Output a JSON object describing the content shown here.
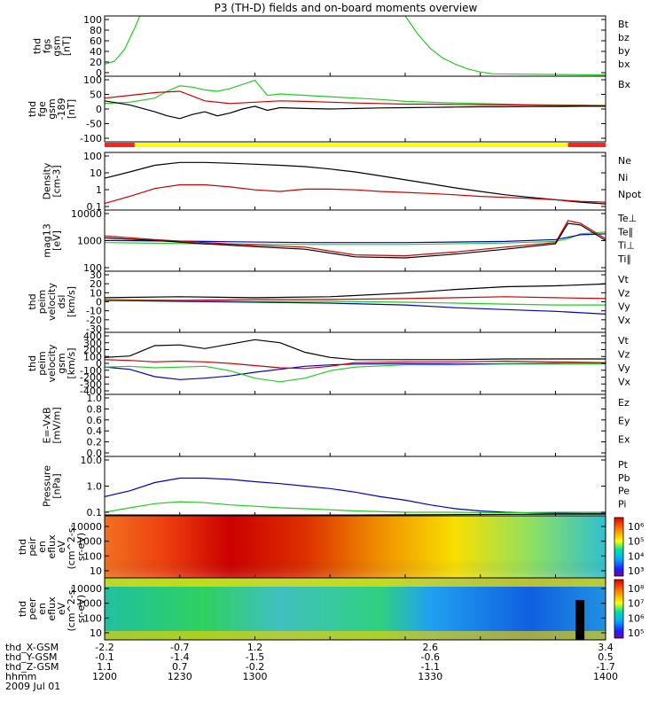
{
  "title": "P3 (TH-D) fields and on-board moments overview",
  "footer": {
    "rows": [
      {
        "label": "thd_X-GSM",
        "values": [
          "-2.2",
          "-0.7",
          "1.2",
          "2.6",
          "3.4"
        ]
      },
      {
        "label": "thd_Y-GSM",
        "values": [
          "-0.1",
          "-1.4",
          "-1.5",
          "-0.6",
          "0.5"
        ]
      },
      {
        "label": "thd_Z-GSM",
        "values": [
          "1.1",
          "0.7",
          "-0.2",
          "-1.1",
          "-1.7"
        ]
      },
      {
        "label": "hhmm",
        "values": [
          "1200",
          "1230",
          "1300",
          "1330",
          "1400"
        ]
      }
    ],
    "date": "2009 Jul 01"
  },
  "chart_data": [
    {
      "type": "line",
      "ylabel": [
        "thd",
        "fgs",
        "gsm",
        "[nT]"
      ],
      "yticks": [
        "100",
        "80",
        "60",
        "40",
        "20",
        "0"
      ],
      "ylim": [
        0,
        100
      ],
      "legend": [
        {
          "label": "Bt",
          "color": "#000000"
        },
        {
          "label": "bz",
          "color": "#cc0000"
        },
        {
          "label": "by",
          "color": "#00b400"
        },
        {
          "label": "bx",
          "color": "#0000cc"
        }
      ],
      "series": [
        {
          "color": "#22cc22",
          "x": [
            1200,
            1204,
            1208,
            1212,
            1214,
            1320,
            1325,
            1330,
            1335,
            1340,
            1345,
            1350,
            1355,
            1400
          ],
          "y": [
            20,
            25,
            45,
            80,
            100,
            100,
            70,
            46,
            30,
            20,
            12,
            7,
            4,
            2
          ]
        }
      ]
    },
    {
      "type": "line",
      "ylabel": [
        "thd",
        "fge",
        "gsm",
        "-189",
        "[nT]"
      ],
      "yticks": [
        "100",
        "50",
        "0",
        "-50",
        "-100"
      ],
      "ylim": [
        -130,
        110
      ],
      "legend": [
        {
          "label": "Bx",
          "color": "#000000"
        }
      ],
      "series": [
        {
          "color": "#22cc22",
          "x": [
            1200,
            1210,
            1220,
            1225,
            1230,
            1235,
            1240,
            1245,
            1250,
            1255,
            1260,
            1265,
            1270,
            1280,
            1290,
            1300,
            1310,
            1320,
            1330,
            1340,
            1350,
            1360,
            1370,
            1380,
            1390,
            1400
          ],
          "y": [
            10,
            15,
            30,
            55,
            75,
            70,
            60,
            55,
            65,
            80,
            95,
            40,
            45,
            40,
            35,
            30,
            25,
            18,
            15,
            12,
            10,
            8,
            6,
            5,
            4,
            3
          ]
        },
        {
          "color": "#cc0000",
          "x": [
            1200,
            1210,
            1220,
            1230,
            1240,
            1250,
            1260,
            1270,
            1280,
            1290,
            1300,
            1310,
            1320,
            1330,
            1340,
            1350,
            1360,
            1370,
            1380,
            1390,
            1400
          ],
          "y": [
            30,
            40,
            50,
            55,
            20,
            10,
            15,
            20,
            18,
            15,
            12,
            10,
            8,
            8,
            7,
            6,
            5,
            4,
            3,
            3,
            2
          ]
        },
        {
          "color": "#000000",
          "x": [
            1200,
            1210,
            1220,
            1225,
            1230,
            1235,
            1240,
            1245,
            1250,
            1255,
            1260,
            1265,
            1270,
            1280,
            1290,
            1300,
            1310,
            1320,
            1330,
            1340,
            1350,
            1360,
            1370,
            1380,
            1390,
            1400
          ],
          "y": [
            20,
            5,
            -20,
            -35,
            -45,
            -30,
            -20,
            -35,
            -25,
            -10,
            0,
            -15,
            -5,
            -8,
            -10,
            -8,
            -6,
            -5,
            -4,
            -3,
            -2,
            -2,
            -1,
            -1,
            0,
            0
          ]
        }
      ],
      "status_bar": [
        {
          "from": 1200,
          "to": 1212,
          "color": "#ff2020"
        },
        {
          "from": 1212,
          "to": 1385,
          "color": "#ffff00"
        },
        {
          "from": 1385,
          "to": 1400,
          "color": "#ff2020"
        }
      ]
    },
    {
      "type": "line",
      "scale": "log",
      "ylabel": [
        "Density",
        "[cm-3]"
      ],
      "yticks": [
        "100",
        "10",
        "1",
        "0.1"
      ],
      "ylim": [
        0.06,
        180
      ],
      "legend": [
        {
          "label": "Ne",
          "color": "#cc0000"
        },
        {
          "label": "Ni",
          "color": "#000000"
        },
        {
          "label": "Npot",
          "color": "#0000cc"
        }
      ],
      "series": [
        {
          "color": "#000000",
          "x": [
            1200,
            1210,
            1220,
            1230,
            1240,
            1250,
            1260,
            1270,
            1280,
            1290,
            1300,
            1310,
            1320,
            1330,
            1340,
            1350,
            1360,
            1370,
            1380,
            1390,
            1400
          ],
          "y": [
            5,
            12,
            30,
            45,
            45,
            40,
            35,
            30,
            25,
            18,
            12,
            7,
            4,
            2.3,
            1.3,
            0.8,
            0.5,
            0.35,
            0.25,
            0.18,
            0.14
          ]
        },
        {
          "color": "#cc0000",
          "x": [
            1200,
            1210,
            1220,
            1230,
            1240,
            1250,
            1260,
            1270,
            1280,
            1290,
            1300,
            1310,
            1320,
            1330,
            1340,
            1350,
            1360,
            1370,
            1380,
            1390,
            1400
          ],
          "y": [
            0.15,
            0.4,
            1.2,
            2,
            2,
            1.5,
            1.0,
            0.8,
            1.1,
            1.1,
            1.0,
            0.8,
            0.7,
            0.6,
            0.5,
            0.4,
            0.35,
            0.3,
            0.25,
            0.2,
            0.18
          ]
        }
      ]
    },
    {
      "type": "line",
      "scale": "log",
      "ylabel": [
        "mag13",
        "[eV]"
      ],
      "yticks": [
        "10000",
        "1000",
        "100"
      ],
      "ylim": [
        20,
        12000
      ],
      "legend": [
        {
          "label": "Te⊥",
          "color": "#cc0000"
        },
        {
          "label": "Te∥",
          "color": "#000000"
        },
        {
          "label": "Ti⊥",
          "color": "#00b400"
        },
        {
          "label": "Ti∥",
          "color": "#00b400"
        }
      ],
      "series": [
        {
          "color": "#22cc22",
          "x": [
            1200,
            1240,
            1280,
            1320,
            1360,
            1380,
            1385,
            1390,
            1400
          ],
          "y": [
            400,
            350,
            330,
            330,
            380,
            450,
            600,
            1000,
            1200
          ]
        },
        {
          "color": "#0000cc",
          "x": [
            1200,
            1240,
            1280,
            1320,
            1360,
            1380,
            1385,
            1390,
            1400
          ],
          "y": [
            500,
            450,
            400,
            400,
            450,
            550,
            700,
            900,
            1000
          ]
        },
        {
          "color": "#cc0000",
          "x": [
            1200,
            1220,
            1240,
            1260,
            1280,
            1300,
            1320,
            1340,
            1360,
            1380,
            1385,
            1390,
            1400
          ],
          "y": [
            800,
            550,
            400,
            300,
            250,
            110,
            100,
            150,
            250,
            400,
            4000,
            3000,
            600
          ]
        },
        {
          "color": "#000000",
          "x": [
            1200,
            1220,
            1240,
            1260,
            1280,
            1300,
            1320,
            1340,
            1360,
            1380,
            1385,
            1390,
            1400
          ],
          "y": [
            650,
            500,
            350,
            260,
            200,
            90,
            80,
            120,
            200,
            350,
            3000,
            2500,
            500
          ]
        }
      ]
    },
    {
      "type": "line",
      "ylabel": [
        "thd",
        "peim",
        "velocity",
        "dsl",
        "[km/s]"
      ],
      "yticks": [
        "30",
        "20",
        "10",
        "0",
        "-10",
        "-20",
        "-30"
      ],
      "ylim": [
        -35,
        32
      ],
      "legend": [
        {
          "label": "Vt",
          "color": "#000000"
        },
        {
          "label": "Vz",
          "color": "#cc0000"
        },
        {
          "label": "Vy",
          "color": "#00b400"
        },
        {
          "label": "Vx",
          "color": "#0000cc"
        }
      ],
      "series": [
        {
          "color": "#0000cc",
          "x": [
            1200,
            1230,
            1260,
            1290,
            1320,
            1340,
            1360,
            1380,
            1400
          ],
          "y": [
            0,
            -1,
            -2,
            -3,
            -5,
            -8,
            -10,
            -12,
            -15
          ]
        },
        {
          "color": "#22cc22",
          "x": [
            1200,
            1230,
            1260,
            1290,
            1320,
            1340,
            1360,
            1380,
            1400
          ],
          "y": [
            1,
            0,
            -1,
            -1,
            -2,
            -3,
            -4,
            -5,
            -5
          ]
        },
        {
          "color": "#cc0000",
          "x": [
            1200,
            1230,
            1260,
            1290,
            1320,
            1340,
            1360,
            1380,
            1400
          ],
          "y": [
            0,
            0,
            1,
            1,
            2,
            3,
            4,
            3,
            2
          ]
        },
        {
          "color": "#000000",
          "x": [
            1200,
            1230,
            1260,
            1290,
            1320,
            1340,
            1360,
            1380,
            1400
          ],
          "y": [
            3,
            4,
            3,
            4,
            8,
            12,
            15,
            16,
            18
          ]
        }
      ]
    },
    {
      "type": "line",
      "ylabel": [
        "thd",
        "peim",
        "velocity",
        "gsm",
        "[km/s]"
      ],
      "yticks": [
        "400",
        "300",
        "200",
        "100",
        "0",
        "-100",
        "-200",
        "-300",
        "-400"
      ],
      "ylim": [
        -420,
        420
      ],
      "legend": [
        {
          "label": "Vt",
          "color": "#000000"
        },
        {
          "label": "Vz",
          "color": "#cc0000"
        },
        {
          "label": "Vy",
          "color": "#00b400"
        },
        {
          "label": "Vx",
          "color": "#0000cc"
        }
      ],
      "series": [
        {
          "color": "#0000cc",
          "x": [
            1200,
            1210,
            1220,
            1230,
            1240,
            1250,
            1260,
            1270,
            1280,
            1290,
            1300,
            1320,
            1340,
            1360,
            1380,
            1400
          ],
          "y": [
            -50,
            -80,
            -180,
            -220,
            -200,
            -170,
            -120,
            -80,
            -40,
            -20,
            -10,
            -5,
            -10,
            -5,
            0,
            -5
          ]
        },
        {
          "color": "#22cc22",
          "x": [
            1200,
            1210,
            1220,
            1230,
            1240,
            1250,
            1260,
            1270,
            1280,
            1290,
            1300,
            1320,
            1340,
            1360,
            1380,
            1400
          ],
          "y": [
            -50,
            -40,
            -60,
            -50,
            -40,
            -100,
            -200,
            -250,
            -200,
            -100,
            -50,
            -20,
            -20,
            -10,
            -10,
            -5
          ]
        },
        {
          "color": "#cc0000",
          "x": [
            1200,
            1210,
            1220,
            1230,
            1240,
            1250,
            1260,
            1270,
            1280,
            1290,
            1300,
            1320,
            1340,
            1360,
            1380,
            1400
          ],
          "y": [
            50,
            40,
            20,
            30,
            20,
            0,
            -30,
            -60,
            -70,
            -40,
            10,
            20,
            20,
            30,
            20,
            10
          ]
        },
        {
          "color": "#000000",
          "x": [
            1200,
            1210,
            1220,
            1230,
            1240,
            1250,
            1260,
            1270,
            1280,
            1290,
            1300,
            1320,
            1340,
            1360,
            1380,
            1400
          ],
          "y": [
            80,
            100,
            240,
            250,
            200,
            260,
            320,
            280,
            150,
            80,
            50,
            50,
            50,
            60,
            60,
            60
          ]
        }
      ]
    },
    {
      "type": "line",
      "ylabel": [
        "E=-VxB",
        "[mV/m]"
      ],
      "yticks": [
        "1.0",
        "0.8",
        "0.6",
        "0.4",
        "0.2",
        "0.0"
      ],
      "ylim": [
        0,
        1
      ],
      "legend": [
        {
          "label": "Ez",
          "color": "#cc0000"
        },
        {
          "label": "Ey",
          "color": "#00b400"
        },
        {
          "label": "Ex",
          "color": "#0000cc"
        }
      ],
      "series": []
    },
    {
      "type": "line",
      "scale": "log",
      "ylabel": [
        "Pressure",
        "[nPa]"
      ],
      "yticks": [
        "10.0",
        "1.0",
        "0.1"
      ],
      "ylim": [
        0.02,
        18
      ],
      "legend": [
        {
          "label": "Pt",
          "color": "#000000"
        },
        {
          "label": "Pb",
          "color": "#cc0000"
        },
        {
          "label": "Pe",
          "color": "#00b400"
        },
        {
          "label": "Pi",
          "color": "#0000cc"
        }
      ],
      "series": [
        {
          "color": "#0000cc",
          "x": [
            1200,
            1210,
            1220,
            1230,
            1240,
            1250,
            1260,
            1270,
            1280,
            1290,
            1300,
            1310,
            1320,
            1330,
            1340,
            1350,
            1360,
            1370,
            1380,
            1390,
            1400
          ],
          "y": [
            0.18,
            0.35,
            0.9,
            1.5,
            1.5,
            1.3,
            1.0,
            0.8,
            0.6,
            0.45,
            0.3,
            0.18,
            0.12,
            0.07,
            0.045,
            0.035,
            0.03,
            0.028,
            0.027,
            0.026,
            0.026
          ]
        },
        {
          "color": "#22cc22",
          "x": [
            1200,
            1210,
            1220,
            1230,
            1240,
            1250,
            1260,
            1270,
            1280,
            1290,
            1300,
            1320,
            1340,
            1360,
            1380,
            1400
          ],
          "y": [
            0.03,
            0.05,
            0.08,
            0.1,
            0.09,
            0.07,
            0.06,
            0.05,
            0.045,
            0.04,
            0.035,
            0.03,
            0.03,
            0.028,
            0.03,
            0.03
          ]
        },
        {
          "color": "#000000",
          "x": [
            1200,
            1300,
            1380,
            1400
          ],
          "y": [
            0.022,
            0.022,
            0.024,
            0.024
          ]
        }
      ]
    },
    {
      "type": "heatmap",
      "ylabel": [
        "thd",
        "peir",
        "en",
        "eflux",
        "eV",
        "(cm^2-s-",
        "sr-eV)"
      ],
      "yticks": [
        "10000",
        "1000",
        "100",
        "10"
      ],
      "colorbar_ticks": [
        "10⁶",
        "10⁵",
        "10⁴",
        "10³"
      ]
    },
    {
      "type": "heatmap",
      "ylabel": [
        "thd",
        "peer",
        "en",
        "eflux",
        "eV",
        "(cm^2-s-",
        "sr-eV)"
      ],
      "yticks": [
        "10000",
        "1000",
        "100",
        "10"
      ],
      "colorbar_ticks": [
        "10⁸",
        "10⁷",
        "10⁶",
        "10⁵"
      ]
    }
  ]
}
